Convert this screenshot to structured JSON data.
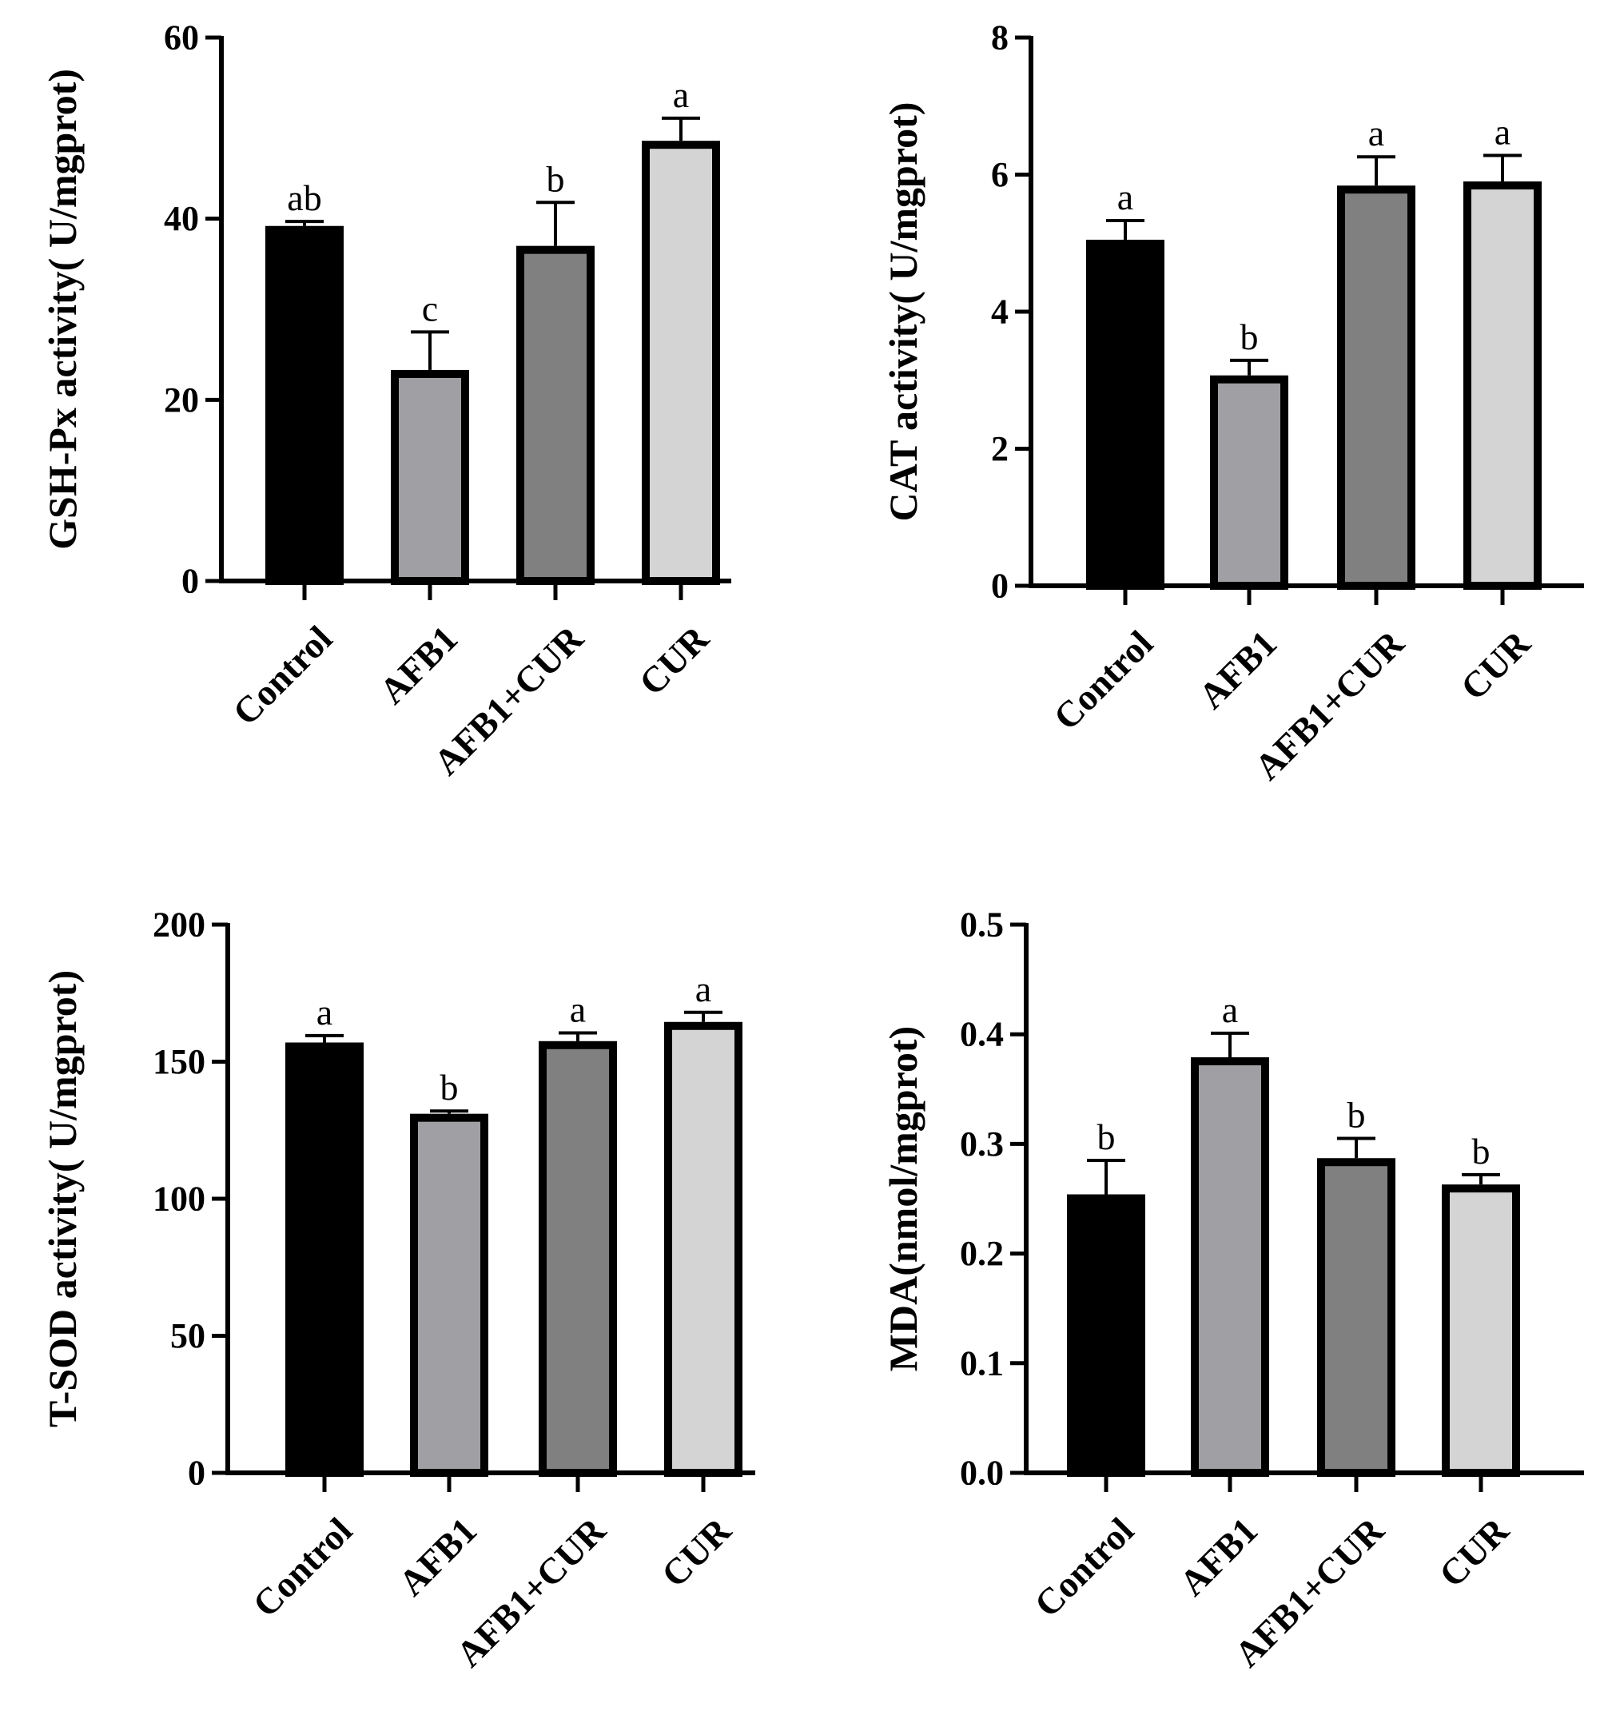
{
  "chart_data": [
    {
      "type": "bar",
      "title": "",
      "xlabel": "",
      "ylabel": "GSH-Px activity( U/mgprot)",
      "ylim": [
        0,
        60
      ],
      "yticks": [
        "0",
        "20",
        "40",
        "60"
      ],
      "ytick_values": [
        0,
        20,
        40,
        60
      ],
      "categories": [
        "Control",
        "AFB1",
        "AFB1+CUR",
        "CUR"
      ],
      "values": [
        39.2,
        23.3,
        37.0,
        48.6
      ],
      "errors": [
        0.5,
        4.2,
        4.8,
        2.5
      ],
      "significance": [
        "ab",
        "c",
        "b",
        "a"
      ],
      "colors": [
        "#000000",
        "#a0a0a4",
        "#808080",
        "#d4d4d4"
      ],
      "grid": false
    },
    {
      "type": "bar",
      "title": "",
      "xlabel": "",
      "ylabel": "CAT activity( U/mgprot)",
      "ylim": [
        0,
        8
      ],
      "yticks": [
        "0",
        "2",
        "4",
        "6",
        "8"
      ],
      "ytick_values": [
        0,
        2,
        4,
        6,
        8
      ],
      "categories": [
        "Control",
        "AFB1",
        "AFB1+CUR",
        "CUR"
      ],
      "values": [
        5.05,
        3.07,
        5.84,
        5.9
      ],
      "errors": [
        0.28,
        0.22,
        0.42,
        0.38
      ],
      "significance": [
        "a",
        "b",
        "a",
        "a"
      ],
      "colors": [
        "#000000",
        "#a0a0a4",
        "#808080",
        "#d4d4d4"
      ],
      "grid": false
    },
    {
      "type": "bar",
      "title": "",
      "xlabel": "",
      "ylabel": "T-SOD activity( U/mgprot)",
      "ylim": [
        0,
        200
      ],
      "yticks": [
        "0",
        "50",
        "100",
        "150",
        "200"
      ],
      "ytick_values": [
        0,
        50,
        100,
        150,
        200
      ],
      "categories": [
        "Control",
        "AFB1",
        "AFB1+CUR",
        "CUR"
      ],
      "values": [
        157,
        131,
        157.5,
        164.5
      ],
      "errors": [
        2.5,
        1.0,
        3.0,
        3.5
      ],
      "significance": [
        "a",
        "b",
        "a",
        "a"
      ],
      "colors": [
        "#000000",
        "#a0a0a4",
        "#808080",
        "#d4d4d4"
      ],
      "grid": false
    },
    {
      "type": "bar",
      "title": "",
      "xlabel": "",
      "ylabel": "MDA(nmol/mgprot)",
      "ylim": [
        0,
        0.5
      ],
      "yticks": [
        "0.0",
        "0.1",
        "0.2",
        "0.3",
        "0.4",
        "0.5"
      ],
      "ytick_values": [
        0,
        0.1,
        0.2,
        0.3,
        0.4,
        0.5
      ],
      "categories": [
        "Control",
        "AFB1",
        "AFB1+CUR",
        "CUR"
      ],
      "values": [
        0.254,
        0.379,
        0.287,
        0.263
      ],
      "errors": [
        0.031,
        0.022,
        0.018,
        0.009
      ],
      "significance": [
        "b",
        "a",
        "b",
        "b"
      ],
      "colors": [
        "#000000",
        "#a0a0a4",
        "#808080",
        "#d4d4d4"
      ],
      "grid": false
    }
  ]
}
